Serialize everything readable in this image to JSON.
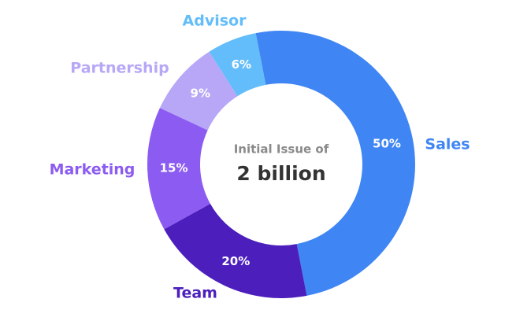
{
  "chart_data": {
    "type": "donut",
    "title": "Initial Issue of",
    "subtitle": "2 billion",
    "categories": [
      "Sales",
      "Team",
      "Marketing",
      "Partnership",
      "Advisor"
    ],
    "values": [
      50,
      20,
      15,
      9,
      6
    ],
    "value_labels": [
      "50%",
      "20%",
      "15%",
      "9%",
      "6%"
    ],
    "colors": [
      "#3f86f4",
      "#4c1fbd",
      "#8c5cf2",
      "#b8a7f7",
      "#63bdfa"
    ]
  }
}
